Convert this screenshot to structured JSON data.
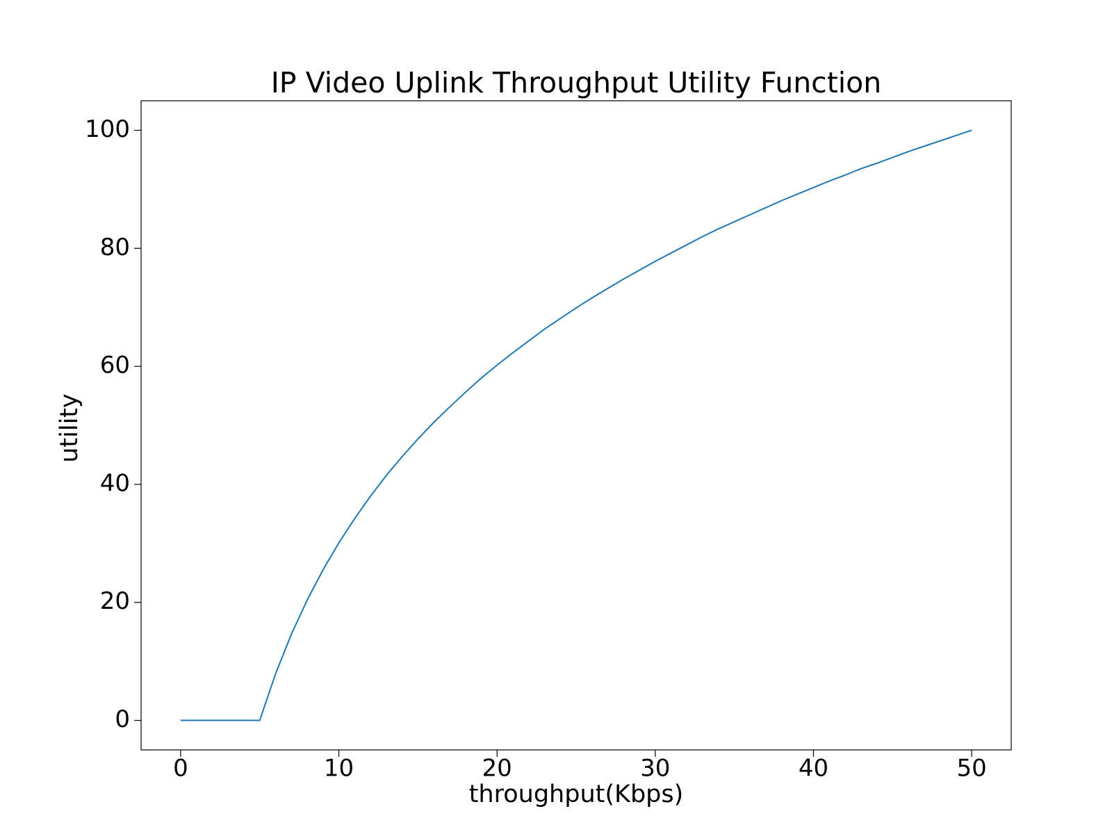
{
  "chart_data": {
    "type": "line",
    "title": "IP Video Uplink Throughput Utility Function",
    "x_label": "throughput(Kbps)",
    "y_label": "utility",
    "x": [
      0,
      1,
      2,
      3,
      4,
      5,
      6,
      7,
      8,
      9,
      10,
      11,
      12,
      13,
      14,
      15,
      16,
      17,
      18,
      19,
      20,
      21,
      22,
      23,
      24,
      25,
      26,
      27,
      28,
      29,
      30,
      31,
      32,
      33,
      34,
      35,
      36,
      37,
      38,
      39,
      40,
      41,
      42,
      43,
      44,
      45,
      46,
      47,
      48,
      49,
      50
    ],
    "series": [
      {
        "color": "#1f77b4",
        "values": [
          0,
          0,
          0,
          0,
          0,
          0,
          7.9,
          14.6,
          20.4,
          25.5,
          30.1,
          34.2,
          38.0,
          41.5,
          44.7,
          47.7,
          50.5,
          53.1,
          55.6,
          58.0,
          60.2,
          62.3,
          64.3,
          66.3,
          68.1,
          69.9,
          71.6,
          73.2,
          74.8,
          76.3,
          77.8,
          79.2,
          80.6,
          82.0,
          83.3,
          84.5,
          85.7,
          86.9,
          88.1,
          89.2,
          90.3,
          91.4,
          92.4,
          93.5,
          94.4,
          95.4,
          96.4,
          97.3,
          98.2,
          99.1,
          100
        ]
      }
    ],
    "xlim": [
      -2.5,
      52.5
    ],
    "ylim": [
      -5,
      105
    ],
    "xticks": [
      0,
      10,
      20,
      30,
      40,
      50
    ],
    "yticks": [
      0,
      20,
      40,
      60,
      80,
      100
    ],
    "grid": false
  }
}
